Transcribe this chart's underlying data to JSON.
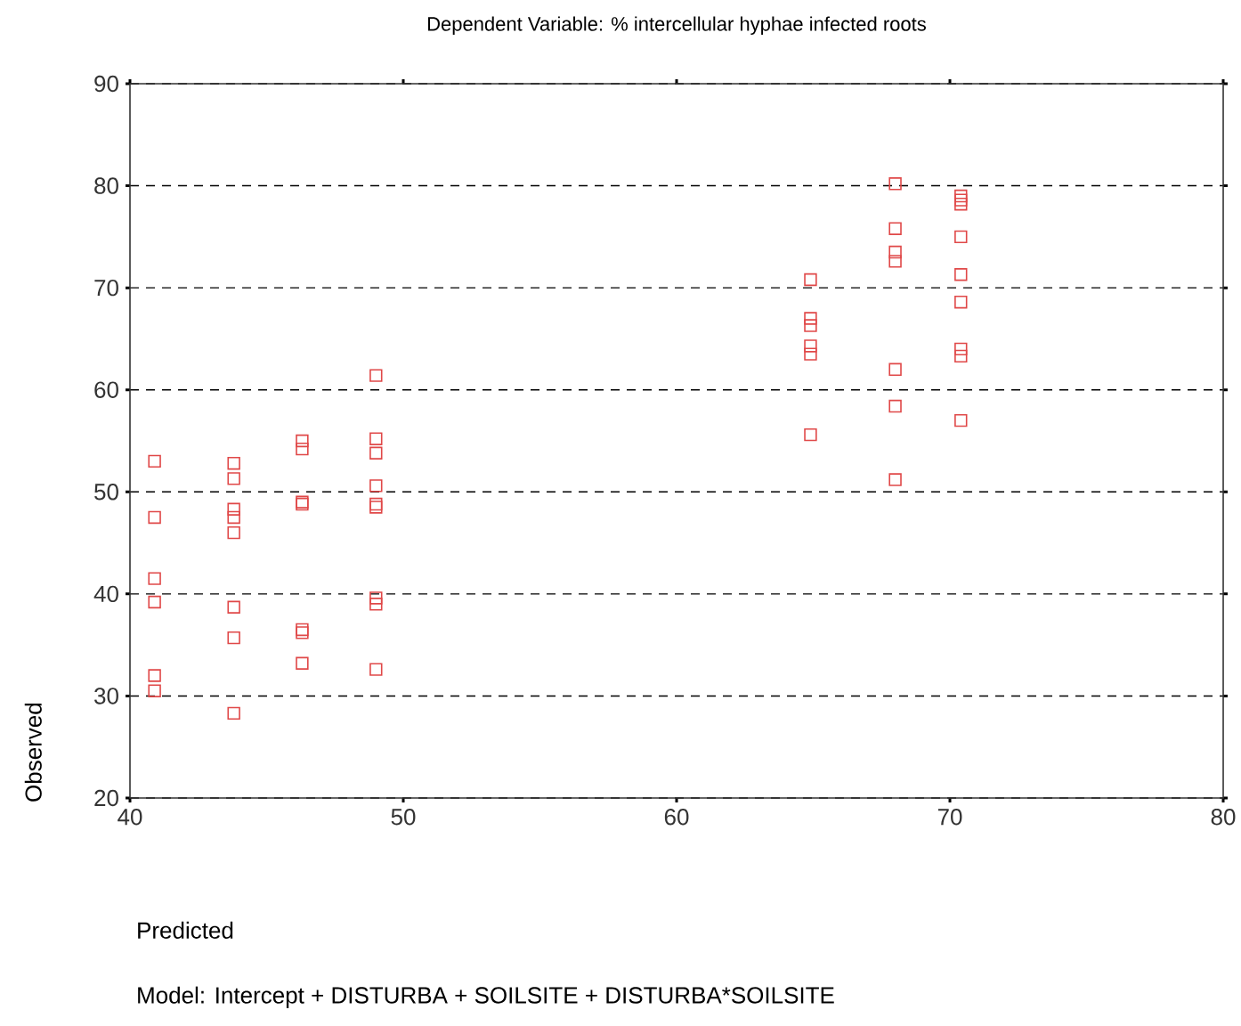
{
  "chart_data": {
    "type": "scatter",
    "title": "Dependent Variable: % intercellular hyphae infected roots",
    "xlabel": "Predicted",
    "ylabel": "Observed",
    "annotations": [
      "Model: Intercept + DISTURBA + SOILSITE + DISTURBA*SOILSITE"
    ],
    "xlim": [
      40,
      80
    ],
    "ylim": [
      20,
      90
    ],
    "xticks": [
      40,
      50,
      60,
      70,
      80
    ],
    "yticks": [
      20,
      30,
      40,
      50,
      60,
      70,
      80,
      90
    ],
    "grid": "y",
    "marker": "square",
    "series": [
      {
        "color": "#e04848",
        "x": [
          40.9,
          40.9,
          40.9,
          40.9,
          40.9,
          40.9,
          43.8,
          43.8,
          43.8,
          43.8,
          43.8,
          43.8,
          43.8,
          43.8,
          46.3,
          46.3,
          46.3,
          46.3,
          46.3,
          46.3,
          46.3,
          49.0,
          49.0,
          49.0,
          49.0,
          49.0,
          49.0,
          49.0,
          49.0,
          49.0,
          64.9,
          64.9,
          64.9,
          64.9,
          64.9,
          64.9,
          68.0,
          68.0,
          68.0,
          68.0,
          68.0,
          68.0,
          68.0,
          70.4,
          70.4,
          70.4,
          70.4,
          70.4,
          70.4,
          70.4,
          70.4,
          70.4
        ],
        "values": [
          53,
          47.5,
          41.5,
          39.2,
          32,
          30.5,
          52.8,
          51.3,
          48.3,
          47.5,
          46,
          38.7,
          35.7,
          28.3,
          55,
          54.2,
          49,
          48.8,
          36.5,
          36.2,
          33.2,
          61.4,
          55.2,
          53.8,
          50.6,
          48.8,
          48.5,
          39.6,
          39,
          32.6,
          70.8,
          67,
          66.3,
          64.3,
          63.5,
          55.6,
          80.2,
          75.8,
          73.5,
          72.6,
          62,
          58.4,
          51.2,
          79,
          78.6,
          78.2,
          75,
          71.3,
          68.6,
          64,
          63.3,
          57
        ]
      }
    ]
  }
}
